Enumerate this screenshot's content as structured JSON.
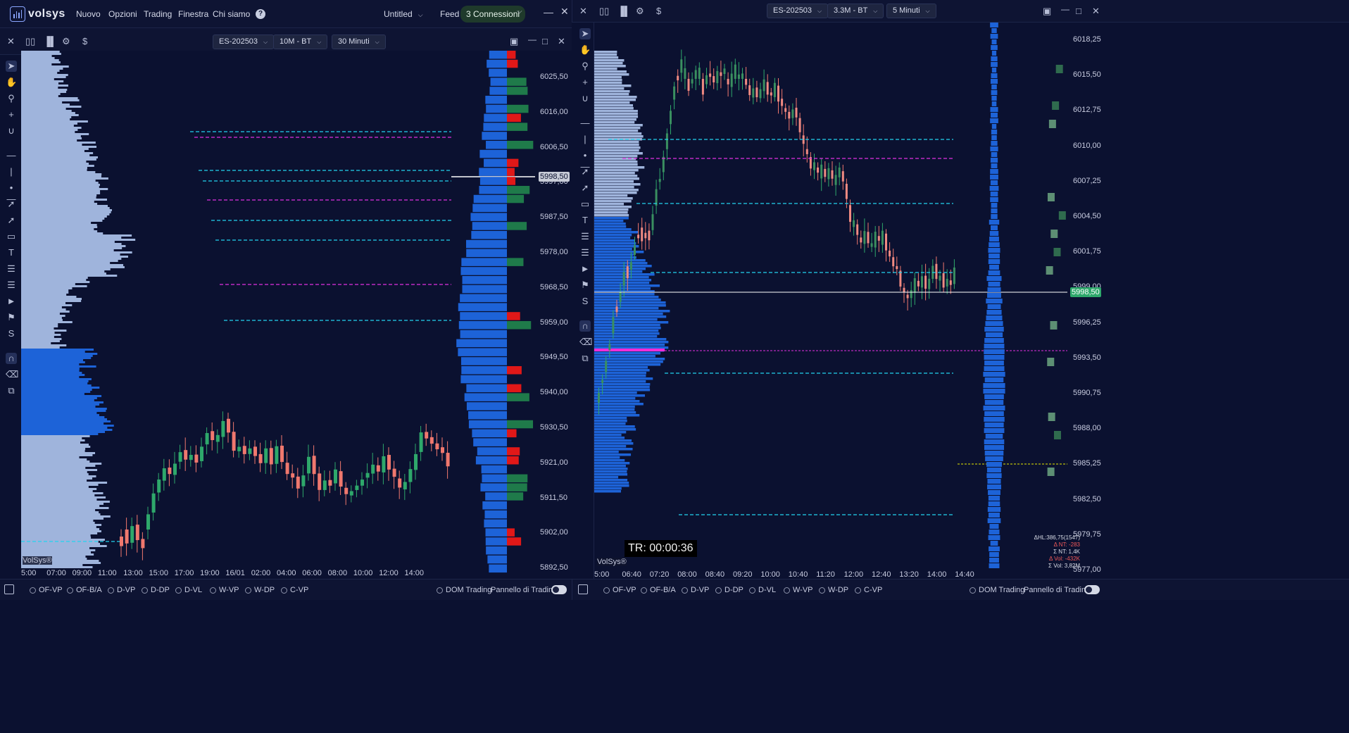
{
  "app": {
    "brand": "volsys",
    "menu": [
      "Nuovo",
      "Opzioni",
      "Trading",
      "Finestra",
      "Chi siamo"
    ],
    "workspace": "Untitled",
    "feed_label": "Feed",
    "connections": "3 Connessioni"
  },
  "colors": {
    "bg": "#0b1130",
    "up": "#2ea86b",
    "down": "#f0786e",
    "profile": "#9fb4dc",
    "poc_blue": "#1d63d8",
    "level_cyan": "#22d3ee",
    "level_magenta": "#e030e0"
  },
  "left": {
    "symbol": "ES-202503",
    "bars": "10M - BT",
    "tf": "30 Minuti",
    "prices": [
      "6025,50",
      "6016,00",
      "6006,50",
      "5997,00",
      "5987,50",
      "5978,00",
      "5968,50",
      "5959,00",
      "5949,50",
      "5940,00",
      "5930,50",
      "5921,00",
      "5911,50",
      "5902,00",
      "5892,50"
    ],
    "current_price": "5998,50",
    "times": [
      "5:00",
      "07:00",
      "09:00",
      "11:00",
      "13:00",
      "15:00",
      "17:00",
      "19:00",
      "16/01",
      "02:00",
      "04:00",
      "06:00",
      "08:00",
      "10:00",
      "12:00",
      "14:00"
    ],
    "watermark": "VolSys®",
    "footer": [
      "OF-VP",
      "OF-B/A",
      "D-VP",
      "D-DP",
      "D-VL",
      "W-VP",
      "W-DP",
      "C-VP"
    ],
    "dom": "DOM Trading",
    "panel": "Pannello di Trading"
  },
  "right": {
    "symbol": "ES-202503",
    "bars": "3.3M - BT",
    "tf": "5 Minuti",
    "prices": [
      "6018,25",
      "6015,50",
      "6012,75",
      "6010,00",
      "6007,25",
      "6004,50",
      "6001,75",
      "5999,00",
      "5996,25",
      "5993,50",
      "5990,75",
      "5988,00",
      "5985,25",
      "5982,50",
      "5979,75",
      "5977,00"
    ],
    "current_price": "5998,50",
    "times": [
      "5:00",
      "06:40",
      "07:20",
      "08:00",
      "08:40",
      "09:20",
      "10:00",
      "10:40",
      "11:20",
      "12:00",
      "12:40",
      "13:20",
      "14:00",
      "14:40"
    ],
    "watermark": "VolSys®",
    "timer": "TR: 00:00:36",
    "stats": [
      "ΔHL:386,75(1547)",
      "Δ NT: -283",
      "Σ NT: 1,4K",
      "Δ Vol: -432K",
      "Σ Vol: 3,82M"
    ],
    "footer": [
      "OF-VP",
      "OF-B/A",
      "D-VP",
      "D-DP",
      "D-VL",
      "W-VP",
      "W-DP",
      "C-VP"
    ],
    "dom": "DOM Trading",
    "panel": "Pannello di Trading"
  }
}
